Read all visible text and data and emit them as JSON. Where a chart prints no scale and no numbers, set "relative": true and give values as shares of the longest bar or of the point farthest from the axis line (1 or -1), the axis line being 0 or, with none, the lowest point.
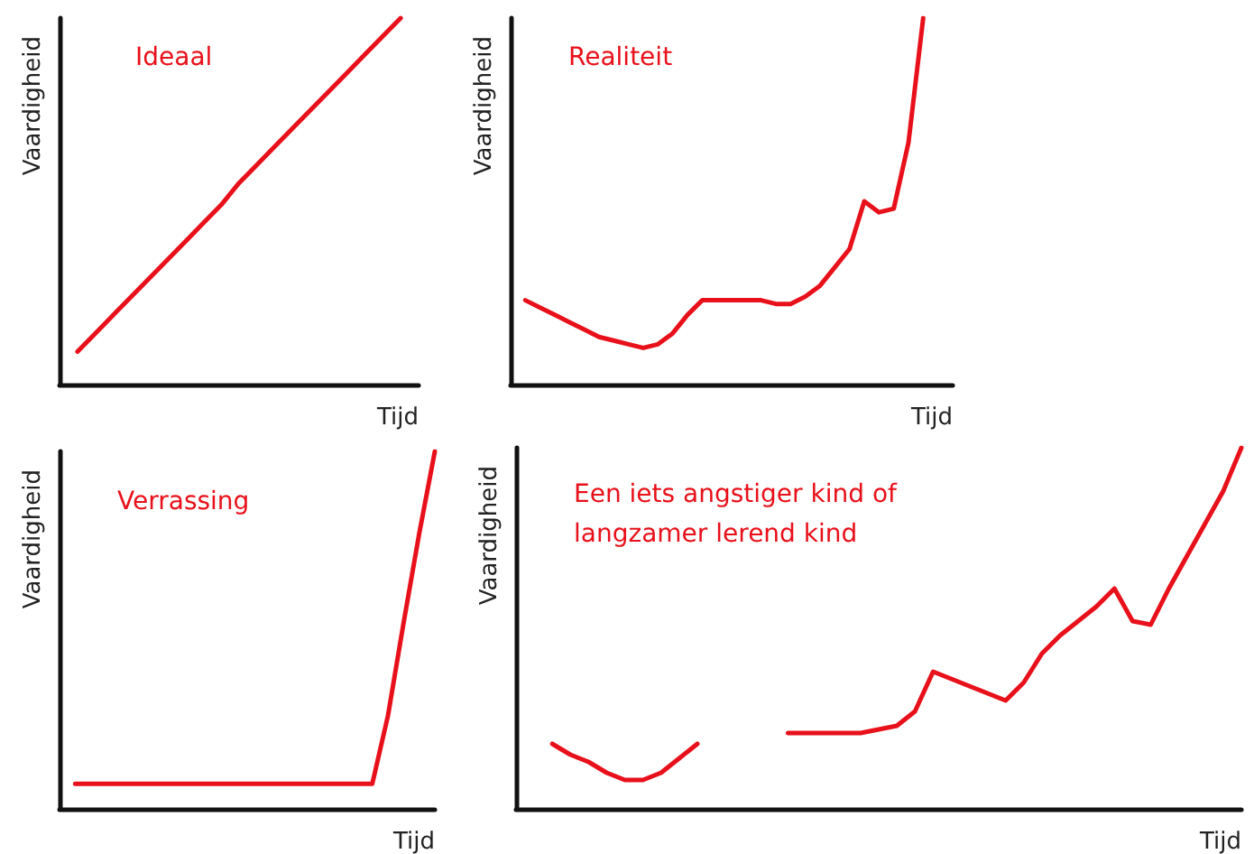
{
  "chart_data": [
    {
      "type": "line",
      "title": "Ideaal",
      "xlabel": "Tijd",
      "ylabel": "Vaardigheid",
      "relative": true,
      "categories": [
        null,
        null,
        null,
        null,
        null,
        null,
        null,
        null,
        null,
        null,
        null,
        null,
        null,
        null,
        null,
        null,
        null,
        null,
        null,
        null,
        null
      ],
      "series": [
        {
          "color": "#e8101a",
          "values": [
            null,
            0.09,
            0.14,
            0.19,
            0.24,
            0.29,
            0.34,
            0.39,
            0.44,
            0.49,
            0.55,
            0.6,
            0.65,
            0.7,
            0.75,
            0.8,
            0.85,
            0.9,
            0.95,
            1.0,
            null
          ]
        }
      ]
    },
    {
      "type": "line",
      "title": "Realiteit",
      "xlabel": "Tijd",
      "ylabel": "Vaardigheid",
      "relative": true,
      "categories": [
        null,
        null,
        null,
        null,
        null,
        null,
        null,
        null,
        null,
        null,
        null,
        null,
        null,
        null,
        null,
        null,
        null,
        null,
        null,
        null,
        null,
        null,
        null,
        null,
        null,
        null,
        null,
        null,
        null,
        null,
        null
      ],
      "series": [
        {
          "color": "#e8101a",
          "values": [
            null,
            0.23,
            0.21,
            0.19,
            0.17,
            0.15,
            0.13,
            0.12,
            0.11,
            0.1,
            0.11,
            0.14,
            0.19,
            0.23,
            0.23,
            0.23,
            0.23,
            0.23,
            0.22,
            0.22,
            0.24,
            0.27,
            0.32,
            0.37,
            0.5,
            0.47,
            0.48,
            0.66,
            1.0,
            null,
            null
          ]
        }
      ]
    },
    {
      "type": "line",
      "title": "Verrassing",
      "xlabel": "Tijd",
      "ylabel": "Vaardigheid",
      "relative": true,
      "categories": [
        null,
        null,
        null,
        null,
        null,
        null,
        null,
        null,
        null,
        null,
        null,
        null,
        null,
        null,
        null,
        null,
        null,
        null,
        null,
        null,
        null,
        null,
        null,
        null,
        null
      ],
      "series": [
        {
          "color": "#e8101a",
          "values": [
            null,
            0.07,
            0.07,
            0.07,
            0.07,
            0.07,
            0.07,
            0.07,
            0.07,
            0.07,
            0.07,
            0.07,
            0.07,
            0.07,
            0.07,
            0.07,
            0.07,
            0.07,
            0.07,
            0.07,
            0.07,
            0.26,
            0.52,
            0.77,
            1.0
          ]
        }
      ]
    },
    {
      "type": "line",
      "title": "Een iets angstiger kind of langzamer lerend kind",
      "xlabel": "Tijd",
      "ylabel": "Vaardigheid",
      "relative": true,
      "categories": [
        null,
        null,
        null,
        null,
        null,
        null,
        null,
        null,
        null,
        null,
        null,
        null,
        null,
        null,
        null,
        null,
        null,
        null,
        null,
        null,
        null,
        null,
        null,
        null,
        null,
        null,
        null,
        null,
        null,
        null,
        null,
        null,
        null,
        null,
        null,
        null,
        null,
        null,
        null,
        null,
        null
      ],
      "series": [
        {
          "color": "#e8101a",
          "values": [
            null,
            null,
            0.18,
            0.15,
            0.13,
            0.1,
            0.08,
            0.08,
            0.1,
            0.14,
            0.18,
            null,
            null,
            null,
            null,
            null,
            null,
            null,
            null,
            null,
            null,
            null,
            null,
            null,
            null,
            null,
            null,
            null,
            null,
            null,
            null,
            null,
            null,
            null,
            null,
            null,
            null,
            null,
            null,
            null,
            null
          ]
        },
        {
          "color": "#e8101a",
          "values": [
            null,
            null,
            null,
            null,
            null,
            null,
            null,
            null,
            null,
            null,
            null,
            null,
            null,
            null,
            null,
            0.21,
            0.21,
            0.21,
            0.21,
            0.21,
            0.22,
            0.23,
            0.27,
            0.38,
            0.36,
            0.34,
            0.32,
            0.3,
            0.35,
            0.43,
            0.48,
            0.52,
            0.56,
            0.61,
            0.52,
            0.51,
            0.61,
            0.7,
            0.79,
            0.88,
            1.0
          ]
        }
      ]
    }
  ]
}
